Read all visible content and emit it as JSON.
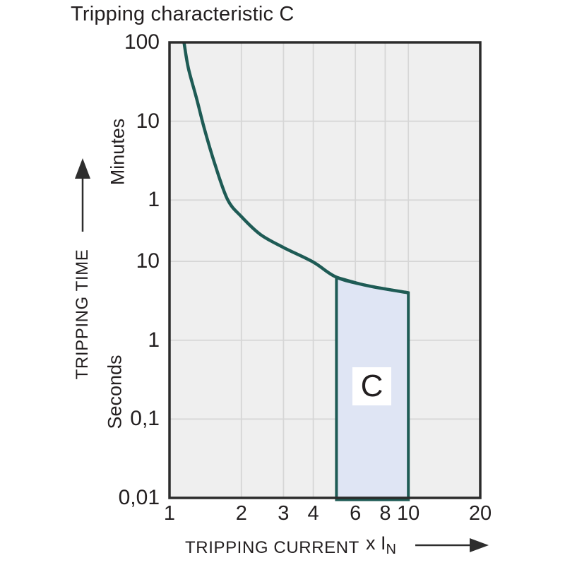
{
  "title": "Tripping characteristic C",
  "colors": {
    "curve": "#1e5b55",
    "region_fill": "#dfe5f4",
    "plot_bg": "#efefef",
    "grid": "#d6d6d6",
    "plot_border": "#2b2b2b",
    "text": "#231f20",
    "arrow": "#2e2e2e"
  },
  "chart_data": {
    "type": "line",
    "title": "Tripping characteristic C",
    "x_axis": {
      "label": "TRIPPING CURRENT",
      "unit": {
        "text": "x I",
        "sub": "N"
      },
      "scale": "log",
      "range": [
        1,
        20
      ],
      "ticks": [
        {
          "label": "1",
          "value": 1
        },
        {
          "label": "2",
          "value": 2
        },
        {
          "label": "3",
          "value": 3
        },
        {
          "label": "4",
          "value": 4
        },
        {
          "label": "6",
          "value": 6
        },
        {
          "label": "8",
          "value": 8
        },
        {
          "label": "10",
          "value": 10
        },
        {
          "label": "20",
          "value": 20
        }
      ]
    },
    "y_axis": {
      "label": "TRIPPING TIME",
      "scale": "log",
      "range_seconds": [
        0.01,
        6000
      ],
      "unit_groups": [
        {
          "name": "Minutes",
          "ticks": [
            {
              "label": "100",
              "seconds": 6000
            },
            {
              "label": "10",
              "seconds": 600
            },
            {
              "label": "1",
              "seconds": 60
            }
          ]
        },
        {
          "name": "Seconds",
          "ticks": [
            {
              "label": "10",
              "seconds": 10
            },
            {
              "label": "1",
              "seconds": 1
            },
            {
              "label": "0,1",
              "seconds": 0.1
            },
            {
              "label": "0,01",
              "seconds": 0.01
            }
          ]
        }
      ]
    },
    "grid": {
      "vertical_x": [
        2,
        3,
        4,
        6,
        8,
        10
      ],
      "horizontal_seconds": [
        600,
        60,
        10,
        1,
        0.1
      ]
    },
    "series": [
      {
        "name": "tripping-curve",
        "points": [
          [
            1.15,
            6000
          ],
          [
            1.2,
            2800
          ],
          [
            1.3,
            1150
          ],
          [
            1.4,
            480
          ],
          [
            1.55,
            170
          ],
          [
            1.75,
            61
          ],
          [
            2,
            37
          ],
          [
            2.4,
            22
          ],
          [
            3,
            15
          ],
          [
            4,
            9.8
          ],
          [
            5,
            6.3
          ],
          [
            6.8,
            4.9
          ],
          [
            10,
            4.0
          ]
        ]
      }
    ],
    "region": {
      "label": "C",
      "x_min": 5,
      "x_max": 10,
      "top_points": [
        [
          5,
          6.3
        ],
        [
          6.8,
          4.9
        ],
        [
          10,
          4.0
        ]
      ],
      "bottom_seconds": 0.0095
    }
  }
}
